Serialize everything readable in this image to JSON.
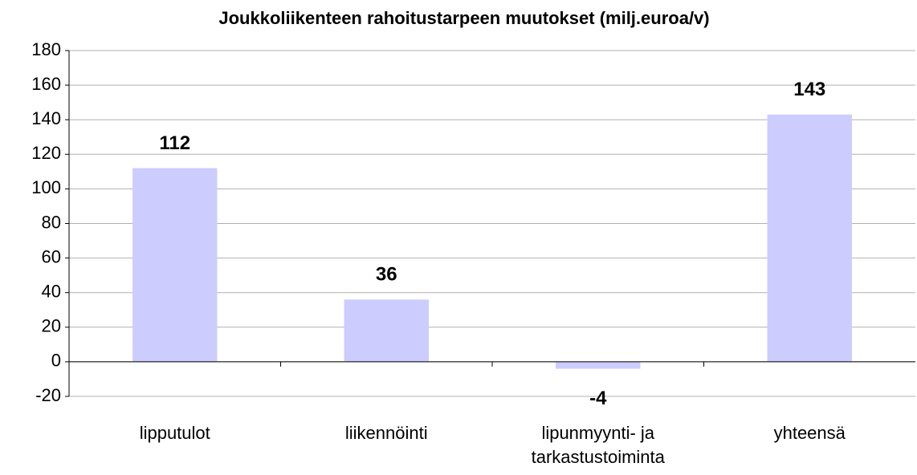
{
  "chart_data": {
    "type": "bar",
    "title": "Joukkoliikenteen rahoitustarpeen muutokset (milj.euroa/v)",
    "categories": [
      "lipputulot",
      "liikennöinti",
      "lipunmyynti- ja tarkastustoiminta",
      "yhteensä"
    ],
    "values": [
      112,
      36,
      -4,
      143
    ],
    "color": "#ccccff",
    "ylim": [
      -20,
      180
    ],
    "yticks": [
      -20,
      0,
      20,
      40,
      60,
      80,
      100,
      120,
      140,
      160,
      180
    ],
    "grid": true
  }
}
